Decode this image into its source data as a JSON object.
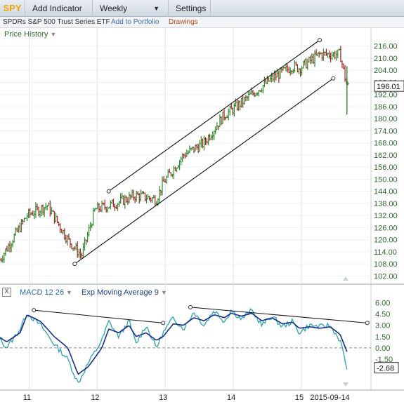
{
  "toolbar": {
    "symbol": "SPY",
    "add_indicator": "Add Indicator",
    "interval": "Weekly",
    "settings": "Settings"
  },
  "subbar": {
    "fund_name": "SPDRs S&P 500 Trust Series ETF",
    "add_to_portfolio": "Add to Portfolio",
    "drawings": "Drawings"
  },
  "price_panel": {
    "title": "Price History",
    "last_value": "196.01",
    "y_ticks": [
      "216.00",
      "210.00",
      "204.00",
      "198.00",
      "192.00",
      "186.00",
      "180.00",
      "174.00",
      "168.00",
      "162.00",
      "156.00",
      "150.00",
      "144.00",
      "138.00",
      "132.00",
      "126.00",
      "120.00",
      "114.00",
      "108.00",
      "102.00"
    ]
  },
  "macd_panel": {
    "close_label": "X",
    "macd_label": "MACD 12 26",
    "ema_label": "Exp Moving Average 9",
    "last_value": "-2.68",
    "y_ticks": [
      "6.00",
      "4.50",
      "3.00",
      "1.50",
      "0.00",
      "-1.50"
    ]
  },
  "x_axis": {
    "labels": [
      "11",
      "12",
      "13",
      "14",
      "15",
      "2015-09-14"
    ]
  },
  "colors": {
    "up_bar": "#2b8a2b",
    "down_bar": "#a32222",
    "macd_line": "#3aa6b3",
    "signal_line": "#1b2f8a",
    "trend_line": "#111111",
    "grid": "#dde3e8",
    "axis_label": "#2f6a2f"
  },
  "chart_data": [
    {
      "type": "candlestick",
      "title": "Price History",
      "ylim": [
        99,
        218
      ],
      "x": [
        2010.6,
        2011.0,
        2011.3,
        2011.6,
        2011.8,
        2012.0,
        2012.3,
        2012.6,
        2012.9,
        2013.0,
        2013.3,
        2013.6,
        2013.9,
        2014.0,
        2014.3,
        2014.6,
        2014.9,
        2015.0,
        2015.3,
        2015.6,
        2015.7
      ],
      "close": [
        110,
        132,
        137,
        120,
        112,
        135,
        138,
        142,
        140,
        148,
        162,
        168,
        182,
        184,
        192,
        200,
        206,
        205,
        212,
        212,
        196
      ],
      "last_value": 196.01,
      "channel_upper": {
        "from": [
          2012.2,
          144
        ],
        "to": [
          2015.3,
          219
        ]
      },
      "channel_lower": {
        "from": [
          2011.7,
          108
        ],
        "to": [
          2015.5,
          200
        ]
      }
    },
    {
      "type": "line",
      "title": "MACD 12 26",
      "ylim": [
        -5.5,
        6.5
      ],
      "series": [
        {
          "name": "MACD 12 26",
          "x": [
            2010.5,
            2010.7,
            2010.9,
            2011.0,
            2011.2,
            2011.4,
            2011.6,
            2011.75,
            2011.9,
            2012.1,
            2012.2,
            2012.35,
            2012.5,
            2012.6,
            2012.75,
            2012.9,
            2013.0,
            2013.15,
            2013.3,
            2013.45,
            2013.6,
            2013.75,
            2013.9,
            2014.0,
            2014.15,
            2014.3,
            2014.45,
            2014.6,
            2014.75,
            2014.9,
            2015.0,
            2015.15,
            2015.3,
            2015.45,
            2015.6,
            2015.7
          ],
          "values": [
            2.5,
            0.0,
            2.5,
            4.6,
            3.0,
            0.5,
            -1.5,
            -4.7,
            -2.0,
            1.0,
            3.5,
            1.5,
            3.6,
            0.5,
            3.0,
            0.0,
            2.0,
            4.0,
            2.5,
            4.8,
            3.0,
            5.0,
            3.5,
            5.0,
            3.8,
            5.0,
            3.0,
            4.2,
            2.8,
            3.5,
            2.0,
            3.0,
            2.8,
            3.0,
            1.0,
            -2.68
          ]
        },
        {
          "name": "Exp Moving Average 9",
          "x": [
            2010.5,
            2010.7,
            2010.9,
            2011.0,
            2011.2,
            2011.4,
            2011.6,
            2011.75,
            2011.9,
            2012.1,
            2012.2,
            2012.35,
            2012.5,
            2012.6,
            2012.75,
            2012.9,
            2013.0,
            2013.15,
            2013.3,
            2013.45,
            2013.6,
            2013.75,
            2013.9,
            2014.0,
            2014.15,
            2014.3,
            2014.45,
            2014.6,
            2014.75,
            2014.9,
            2015.0,
            2015.15,
            2015.3,
            2015.45,
            2015.6,
            2015.7
          ],
          "values": [
            2.0,
            0.8,
            2.0,
            4.4,
            3.5,
            1.5,
            0.0,
            -3.5,
            -2.5,
            0.0,
            2.5,
            2.0,
            3.0,
            1.5,
            2.0,
            1.0,
            1.5,
            3.2,
            3.0,
            4.0,
            3.6,
            4.4,
            4.0,
            4.6,
            4.2,
            4.6,
            3.6,
            4.0,
            3.2,
            3.4,
            2.6,
            2.8,
            2.6,
            2.8,
            1.8,
            -0.5
          ]
        }
      ],
      "trend_lines": [
        {
          "from": [
            2011.1,
            5.0
          ],
          "to": [
            2013.0,
            3.3
          ]
        },
        {
          "from": [
            2013.4,
            5.4
          ],
          "to": [
            2016.0,
            3.3
          ]
        }
      ],
      "last_value": -2.68
    }
  ]
}
